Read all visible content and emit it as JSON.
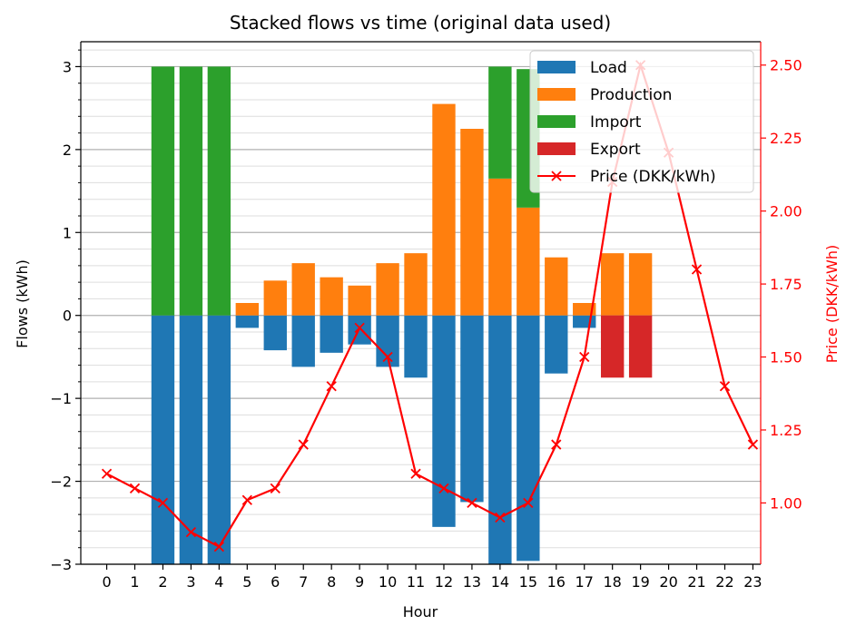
{
  "chart_data": {
    "type": "bar",
    "title": "Stacked flows vs time (original data used)",
    "xlabel": "Hour",
    "ylabel": "Flows (kWh)",
    "y2label": "Price (DKK/kWh)",
    "x": [
      0,
      1,
      2,
      3,
      4,
      5,
      6,
      7,
      8,
      9,
      10,
      11,
      12,
      13,
      14,
      15,
      16,
      17,
      18,
      19,
      20,
      21,
      22,
      23
    ],
    "ylim": [
      -3,
      3.3
    ],
    "y2lim": [
      0.79,
      2.58
    ],
    "yticks": [
      -3,
      -2,
      -1,
      0,
      1,
      2,
      3
    ],
    "y2ticks": [
      1.0,
      1.25,
      1.5,
      1.75,
      2.0,
      2.25,
      2.5
    ],
    "grid": true,
    "legend_position": "upper-right",
    "series": [
      {
        "name": "Load",
        "color": "#1f77b4",
        "stack": "down",
        "values": [
          0,
          0,
          -3,
          -3,
          -3,
          -0.15,
          -0.42,
          -0.62,
          -0.45,
          -0.35,
          -0.62,
          -0.75,
          -2.55,
          -2.25,
          -3,
          -2.96,
          -0.7,
          -0.15,
          0,
          0,
          0,
          0,
          0,
          0
        ]
      },
      {
        "name": "Production",
        "color": "#ff7f0e",
        "stack": "up",
        "values": [
          0,
          0,
          0,
          0,
          0,
          0.15,
          0.42,
          0.63,
          0.46,
          0.36,
          0.63,
          0.75,
          2.55,
          2.25,
          1.65,
          1.3,
          0.7,
          0.15,
          0.75,
          0.75,
          0,
          0,
          0,
          0
        ]
      },
      {
        "name": "Import",
        "color": "#2ca02c",
        "stack": "up",
        "values": [
          0,
          0,
          3,
          3,
          3,
          0,
          0,
          0,
          0,
          0,
          0,
          0,
          0,
          0,
          1.35,
          1.67,
          0,
          0,
          0,
          0,
          0,
          0,
          0,
          0
        ]
      },
      {
        "name": "Export",
        "color": "#d62728",
        "stack": "down",
        "values": [
          0,
          0,
          0,
          0,
          0,
          0,
          0,
          0,
          0,
          0,
          0,
          0,
          0,
          0,
          0,
          0,
          0,
          0,
          -0.75,
          -0.75,
          0,
          0,
          0,
          0
        ]
      },
      {
        "name": "Price (DKK/kWh)",
        "color": "#ff0000",
        "type": "line",
        "axis": "right",
        "values": [
          1.1,
          1.05,
          1.0,
          0.9,
          0.85,
          1.01,
          1.05,
          1.2,
          1.4,
          1.6,
          1.5,
          1.1,
          1.05,
          1.0,
          0.95,
          1.0,
          1.2,
          1.5,
          2.1,
          2.5,
          2.2,
          1.8,
          1.4,
          1.2
        ]
      }
    ]
  }
}
